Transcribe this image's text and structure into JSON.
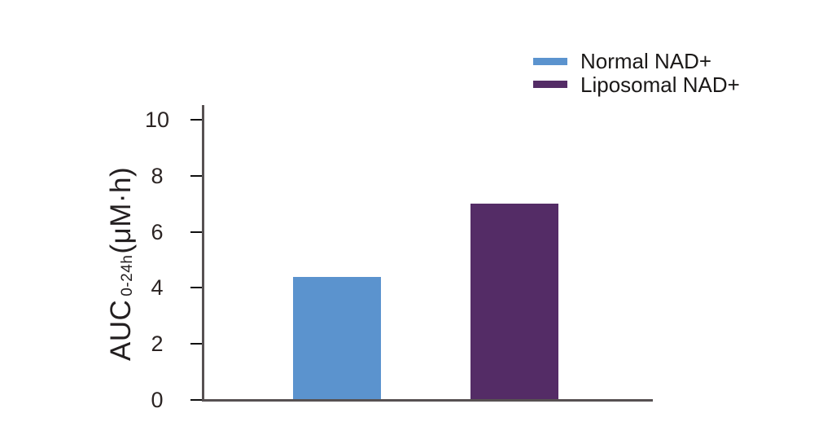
{
  "chart_data": {
    "type": "bar",
    "title": "",
    "categories": [
      "Normal NAD+",
      "Liposomal NAD+"
    ],
    "values": [
      4.4,
      7.0
    ],
    "bar_colors": [
      "#5B93CE",
      "#542C66"
    ],
    "legend": [
      {
        "label": "Normal NAD+",
        "color": "#5B93CE"
      },
      {
        "label": "Liposomal NAD+",
        "color": "#542C66"
      }
    ],
    "legend_position": "top-right",
    "grid": false,
    "xlabel": "",
    "ylabel": "AUC 0-24h (μM·h)",
    "ylabel_parts": {
      "main": "AUC",
      "subscript": "0-24h",
      "unit": "(μM·h)"
    },
    "yticks": [
      0,
      2,
      4,
      6,
      8,
      10
    ],
    "ylim": [
      0,
      10
    ],
    "x_tick_labels_shown": false
  },
  "colors": {
    "background": "#FFFFFF",
    "axis_line": "#575152",
    "tick_mark": "#111111",
    "tick_label": "#2B2423",
    "legend_text": "#1B1918",
    "bar_blue": "#5B93CE",
    "bar_purple": "#542C66"
  }
}
